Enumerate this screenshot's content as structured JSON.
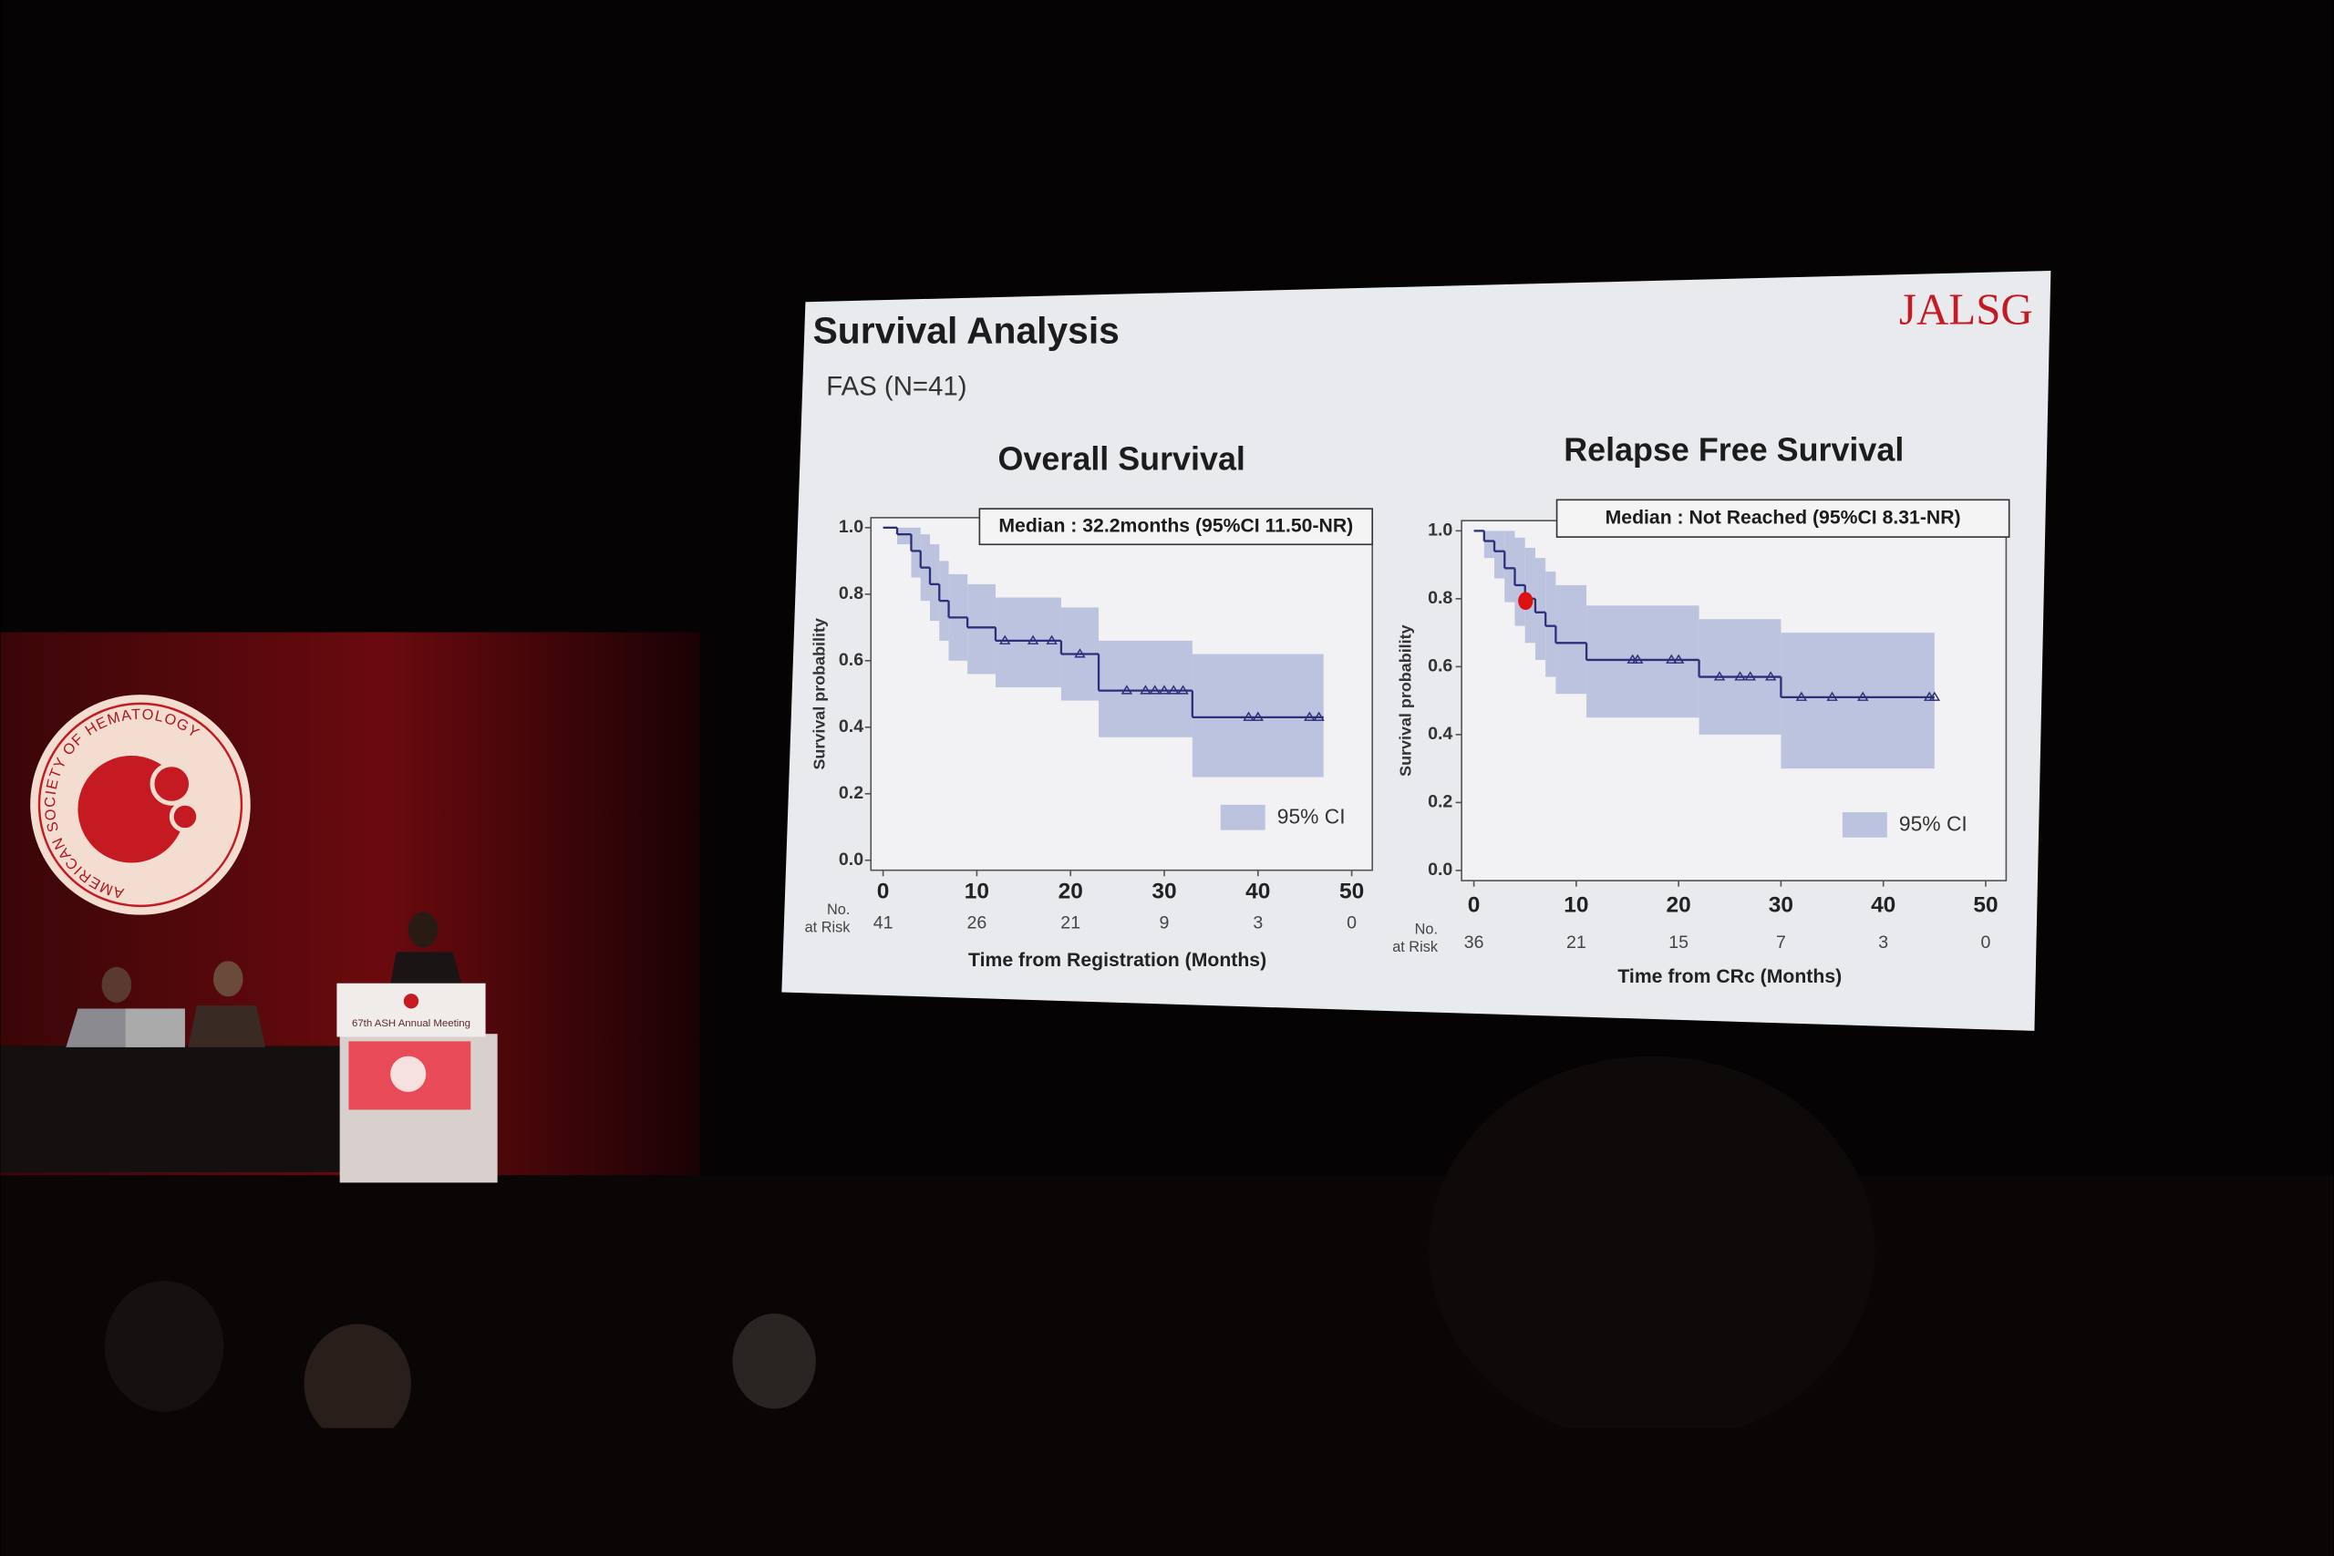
{
  "slide": {
    "title": "Survival Analysis",
    "subtitle": "FAS (N=41)",
    "logo": "JALSG"
  },
  "venue": {
    "society": "AMERICAN SOCIETY OF HEMATOLOGY",
    "podium_sign": "67th ASH Annual Meeting"
  },
  "chart_data": [
    {
      "type": "line",
      "drawstyle": "steps-post",
      "title": "Overall Survival",
      "annotation": "Median : 32.2months (95%CI 11.50-NR)",
      "x_label": "Time from Registration (Months)",
      "y_label": "Survival probability",
      "x": [
        0,
        1.5,
        3,
        4,
        5,
        6,
        7,
        9,
        12,
        19,
        23,
        33,
        47
      ],
      "values": [
        1,
        0.98,
        0.93,
        0.88,
        0.83,
        0.78,
        0.73,
        0.7,
        0.66,
        0.62,
        0.51,
        0.43,
        0.43
      ],
      "ci_upper": [
        1,
        1,
        1,
        0.98,
        0.95,
        0.9,
        0.86,
        0.83,
        0.79,
        0.76,
        0.66,
        0.62,
        0.62
      ],
      "ci_lower": [
        1,
        0.95,
        0.85,
        0.78,
        0.72,
        0.66,
        0.6,
        0.56,
        0.52,
        0.48,
        0.37,
        0.25,
        0.25
      ],
      "censored_x": [
        13,
        16,
        18,
        21,
        26,
        28,
        29,
        30,
        31,
        32,
        39,
        40,
        45.5,
        46.5
      ],
      "censored_values": [
        0.66,
        0.66,
        0.66,
        0.62,
        0.51,
        0.51,
        0.51,
        0.51,
        0.51,
        0.51,
        0.43,
        0.43,
        0.43,
        0.43
      ],
      "color": "#2b2f7a",
      "ci_color": "#bcc3de",
      "legend_label": "95% CI",
      "xlim": [
        -1.3,
        52.2
      ],
      "ylim": [
        -0.03,
        1.03
      ],
      "xticks": [
        0,
        10,
        20,
        30,
        40,
        50
      ],
      "yticks": [
        {
          "value": 0,
          "label": "0.0"
        },
        0.2,
        0.4,
        0.6,
        0.8,
        {
          "value": 1,
          "label": "1.0"
        }
      ],
      "at_risk": {
        "label": [
          "No.",
          "at Risk"
        ],
        "values": [
          41,
          26,
          21,
          9,
          3,
          0
        ]
      }
    },
    {
      "type": "line",
      "drawstyle": "steps-post",
      "title": "Relapse Free Survival",
      "annotation": "Median : Not Reached (95%CI 8.31-NR)",
      "x_label": "Time from CRc (Months)",
      "y_label": "Survival probability",
      "x": [
        0,
        1,
        2,
        3,
        4,
        5,
        6,
        7,
        8,
        11,
        22,
        30,
        45
      ],
      "values": [
        1,
        0.97,
        0.94,
        0.89,
        0.84,
        0.8,
        0.76,
        0.72,
        0.67,
        0.62,
        0.57,
        0.51,
        0.51
      ],
      "ci_upper": [
        1,
        1,
        1,
        1,
        0.98,
        0.95,
        0.92,
        0.88,
        0.84,
        0.78,
        0.74,
        0.7,
        0.7
      ],
      "ci_lower": [
        1,
        0.92,
        0.86,
        0.79,
        0.72,
        0.67,
        0.62,
        0.57,
        0.52,
        0.45,
        0.4,
        0.3,
        0.3
      ],
      "censored_x": [
        15.5,
        16,
        19.3,
        20,
        24,
        26,
        27,
        29,
        32,
        35,
        38,
        44.5,
        45
      ],
      "censored_values": [
        0.62,
        0.62,
        0.62,
        0.62,
        0.57,
        0.57,
        0.57,
        0.57,
        0.51,
        0.51,
        0.51,
        0.51,
        0.51
      ],
      "color": "#2b2f7a",
      "ci_color": "#bcc3de",
      "legend_label": "95% CI",
      "xlim": [
        -1.2,
        52
      ],
      "ylim": [
        -0.03,
        1.03
      ],
      "xticks": [
        0,
        10,
        20,
        30,
        40,
        50
      ],
      "yticks": [
        {
          "value": 0,
          "label": "0.0"
        },
        0.2,
        0.4,
        0.6,
        0.8,
        {
          "value": 1,
          "label": "1.0"
        }
      ],
      "at_risk": {
        "label": [
          "No.",
          "at Risk"
        ],
        "values": [
          36,
          21,
          15,
          7,
          3,
          0
        ]
      }
    }
  ]
}
